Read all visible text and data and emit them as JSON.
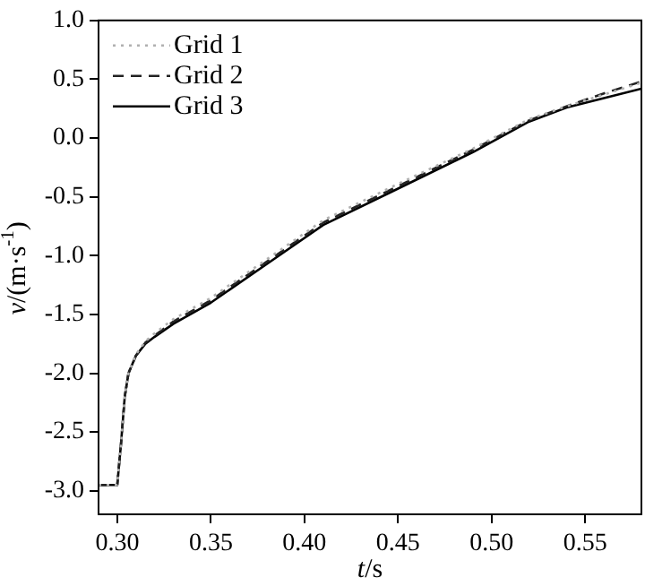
{
  "chart_data": {
    "type": "line",
    "xlabel": "t/s",
    "ylabel": "v/(m·s$^{-1}$)",
    "xlim": [
      0.29,
      0.58
    ],
    "ylim": [
      -3.2,
      1.0
    ],
    "xticks": [
      {
        "value": 0.3,
        "label": "0.30"
      },
      {
        "value": 0.35,
        "label": "0.35"
      },
      {
        "value": 0.4,
        "label": "0.40"
      },
      {
        "value": 0.45,
        "label": "0.45"
      },
      {
        "value": 0.5,
        "label": "0.50"
      },
      {
        "value": 0.55,
        "label": "0.55"
      }
    ],
    "yticks": [
      {
        "value": -3,
        "label": "-3.0"
      },
      {
        "value": -2.5,
        "label": "-2.5"
      },
      {
        "value": -2,
        "label": "-2.0"
      },
      {
        "value": -1.5,
        "label": "-1.5"
      },
      {
        "value": -1,
        "label": "-1.0"
      },
      {
        "value": -0.5,
        "label": "-0.5"
      },
      {
        "value": 0,
        "label": "0.0"
      },
      {
        "value": 0.5,
        "label": "0.5"
      },
      {
        "value": 1,
        "label": "1.0"
      }
    ],
    "legend": "top left",
    "series": [
      {
        "name": "Grid 1",
        "color": "#b0b0b0",
        "line_style": "dotted",
        "x": [
          0.29,
          0.3,
          0.302,
          0.304,
          0.306,
          0.31,
          0.315,
          0.32,
          0.33,
          0.35,
          0.38,
          0.41,
          0.45,
          0.49,
          0.52,
          0.54,
          0.56,
          0.58
        ],
        "values": [
          -2.95,
          -2.95,
          -2.6,
          -2.2,
          -2.0,
          -1.84,
          -1.73,
          -1.66,
          -1.54,
          -1.36,
          -1.03,
          -0.7,
          -0.39,
          -0.09,
          0.16,
          0.27,
          0.37,
          0.47
        ]
      },
      {
        "name": "Grid 2",
        "color": "#222222",
        "line_style": "dashed",
        "x": [
          0.29,
          0.3,
          0.302,
          0.304,
          0.306,
          0.31,
          0.315,
          0.32,
          0.33,
          0.35,
          0.38,
          0.41,
          0.45,
          0.49,
          0.52,
          0.54,
          0.56,
          0.58
        ],
        "values": [
          -2.95,
          -2.95,
          -2.6,
          -2.2,
          -2.0,
          -1.85,
          -1.74,
          -1.68,
          -1.56,
          -1.38,
          -1.05,
          -0.72,
          -0.41,
          -0.1,
          0.15,
          0.27,
          0.38,
          0.48
        ]
      },
      {
        "name": "Grid 3",
        "color": "#000000",
        "line_style": "solid",
        "x": [
          0.29,
          0.3,
          0.302,
          0.304,
          0.306,
          0.31,
          0.315,
          0.32,
          0.33,
          0.35,
          0.38,
          0.41,
          0.45,
          0.49,
          0.52,
          0.54,
          0.56,
          0.58
        ],
        "values": [
          -2.95,
          -2.95,
          -2.6,
          -2.2,
          -2.0,
          -1.85,
          -1.75,
          -1.69,
          -1.58,
          -1.4,
          -1.07,
          -0.74,
          -0.43,
          -0.12,
          0.14,
          0.26,
          0.34,
          0.42
        ]
      }
    ]
  }
}
